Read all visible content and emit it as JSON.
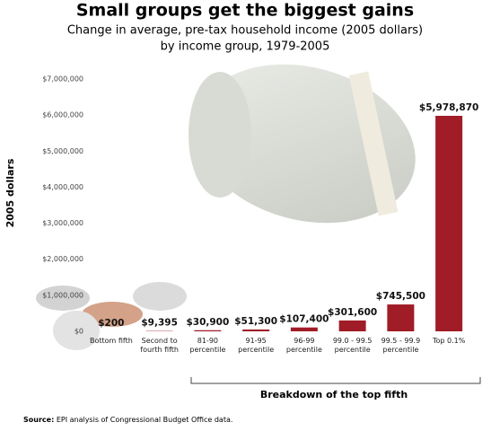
{
  "chart_data": {
    "type": "bar",
    "title": "Small groups get the biggest gains",
    "subtitle": [
      "Change in average, pre-tax household income (2005 dollars)",
      "by income group, 1979-2005"
    ],
    "y_label": "2005 dollars",
    "categories": [
      "Bottom fifth",
      "Second to fourth fifth",
      "81-90 percentile",
      "91-95 percentile",
      "96-99 percentile",
      "99.0 - 99.5 percentile",
      "99.5 - 99.9 percentile",
      "Top 0.1%"
    ],
    "values": [
      200,
      9395,
      30900,
      51300,
      107400,
      301600,
      745500,
      5978870
    ],
    "value_labels": [
      "$200",
      "$9,395",
      "$30,900",
      "$51,300",
      "$107,400",
      "$301,600",
      "$745,500",
      "$5,978,870"
    ],
    "color": "#a01c26",
    "ylim": [
      0,
      7000000
    ],
    "yticks": [
      {
        "value": 0,
        "label": "$0"
      },
      {
        "value": 1000000,
        "label": "$1,000,000"
      },
      {
        "value": 2000000,
        "label": "$2,000,000"
      },
      {
        "value": 3000000,
        "label": "$3,000,000"
      },
      {
        "value": 4000000,
        "label": "$4,000,000"
      },
      {
        "value": 5000000,
        "label": "$5,000,000"
      },
      {
        "value": 6000000,
        "label": "$6,000,000"
      },
      {
        "value": 7000000,
        "label": "$7,000,000"
      }
    ],
    "grid": false,
    "annotation": "Breakdown of the top fifth",
    "source_label": "Source:",
    "source_text": "EPI analysis of Congressional Budget Office data."
  }
}
